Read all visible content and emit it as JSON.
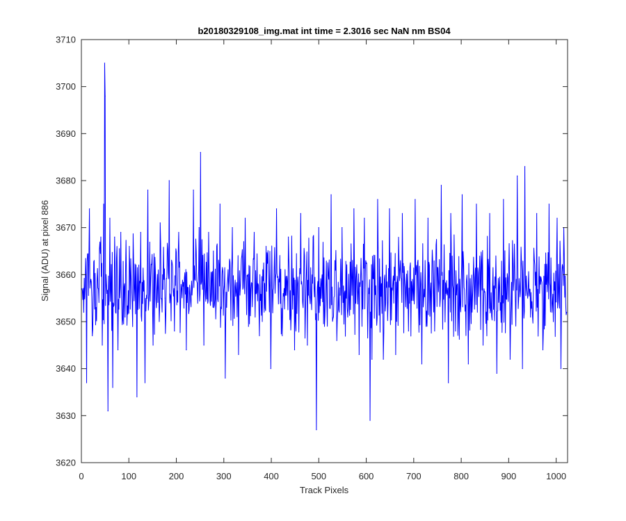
{
  "chart_data": {
    "type": "line",
    "title": "b20180329108_img.mat int time = 2.3016 sec  NaN nm BS04",
    "xlabel": "Track Pixels",
    "ylabel": "Signal (ADU) at pixel 886",
    "xlim": [
      0,
      1024
    ],
    "ylim": [
      3620,
      3710
    ],
    "x_ticks": [
      0,
      100,
      200,
      300,
      400,
      500,
      600,
      700,
      800,
      900,
      1000
    ],
    "y_ticks": [
      3620,
      3630,
      3640,
      3650,
      3660,
      3670,
      3680,
      3690,
      3700,
      3710
    ],
    "grid": false,
    "line_color": "#0000ff",
    "series": [
      {
        "x": [
          1,
          5,
          11,
          17,
          20,
          23,
          27,
          31,
          36,
          41,
          44,
          47,
          49,
          50,
          52,
          54,
          56,
          60,
          66,
          70,
          77,
          83,
          92,
          101,
          112,
          117,
          125,
          134,
          140,
          151,
          166,
          176,
          185,
          196,
          205,
          221,
          236,
          248,
          251,
          258,
          268,
          279,
          292,
          303,
          318,
          331,
          345,
          352,
          364,
          375,
          389,
          399,
          411,
          423,
          436,
          449,
          462,
          476,
          488,
          495,
          500,
          512,
          526,
          538,
          549,
          558,
          561,
          574,
          585,
          596,
          608,
          612,
          624,
          636,
          649,
          662,
          676,
          689,
          703,
          717,
          730,
          744,
          758,
          773,
          778,
          788,
          802,
          815,
          832,
          846,
          860,
          875,
          889,
          903,
          918,
          929,
          934,
          946,
          959,
          972,
          985,
          994,
          1002,
          1010,
          1016,
          1022
        ],
        "y": [
          3657,
          3652,
          3637,
          3674,
          3659,
          3647,
          3663,
          3653,
          3657,
          3668,
          3645,
          3675,
          3705,
          3698,
          3660,
          3656,
          3631,
          3672,
          3636,
          3668,
          3644,
          3669,
          3651,
          3666,
          3657,
          3634,
          3669,
          3637,
          3678,
          3645,
          3671,
          3655,
          3680,
          3648,
          3669,
          3644,
          3678,
          3670,
          3686,
          3645,
          3669,
          3653,
          3675,
          3638,
          3670,
          3643,
          3672,
          3649,
          3669,
          3647,
          3666,
          3640,
          3674,
          3647,
          3668,
          3644,
          3673,
          3645,
          3668,
          3627,
          3670,
          3649,
          3677,
          3646,
          3670,
          3655,
          3651,
          3674,
          3643,
          3672,
          3629,
          3642,
          3676,
          3642,
          3674,
          3643,
          3673,
          3648,
          3676,
          3641,
          3672,
          3648,
          3679,
          3637,
          3673,
          3648,
          3677,
          3641,
          3675,
          3645,
          3673,
          3639,
          3676,
          3642,
          3681,
          3640,
          3683,
          3651,
          3673,
          3644,
          3675,
          3650,
          3672,
          3640,
          3670,
          3652
        ]
      }
    ]
  }
}
